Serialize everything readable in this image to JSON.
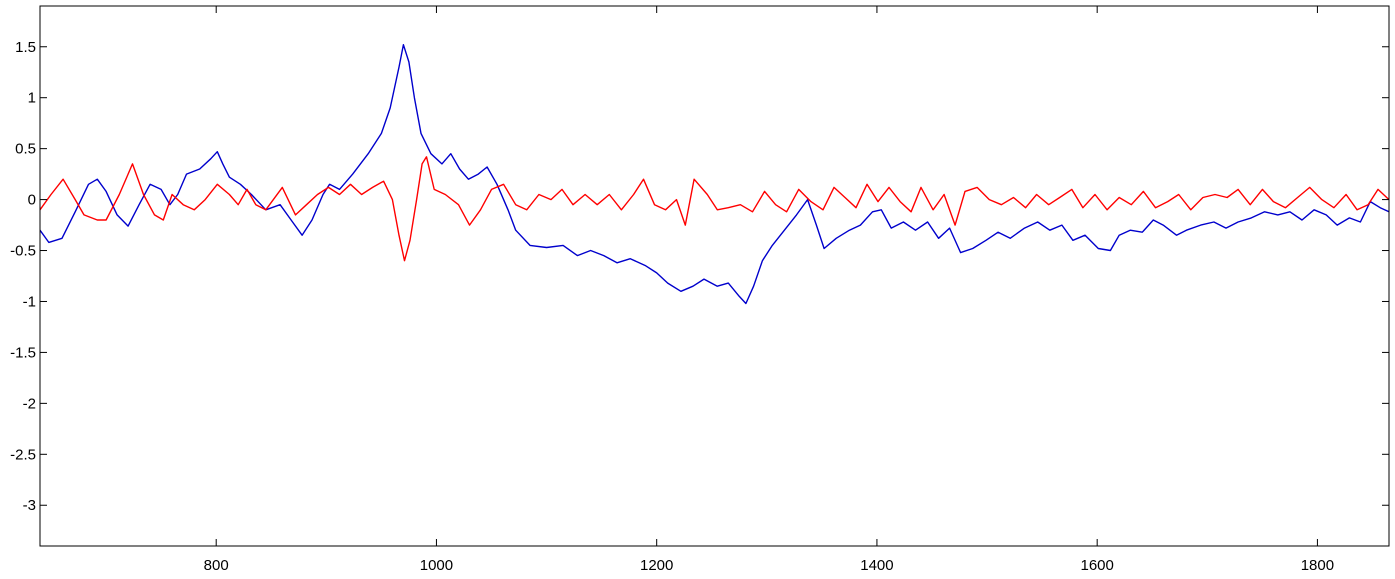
{
  "chart_data": {
    "type": "line",
    "title": "",
    "xlabel": "",
    "ylabel": "",
    "xlim": [
      640,
      1865
    ],
    "ylim": [
      -3.4,
      1.9
    ],
    "grid": false,
    "legend": "none",
    "x_ticks": [
      800,
      1000,
      1200,
      1400,
      1600,
      1800
    ],
    "x_tick_labels": [
      "800",
      "1000",
      "1200",
      "1400",
      "1600",
      "1800"
    ],
    "y_ticks": [
      1.5,
      1,
      0.5,
      0,
      -0.5,
      -1,
      -1.5,
      -2,
      -2.5,
      -3
    ],
    "y_tick_labels": [
      "1.5",
      "1",
      "0.5",
      "0",
      "-0.5",
      "-1",
      "-1.5",
      "-2",
      "-2.5",
      "-3"
    ],
    "series": [
      {
        "color": "#0000cc",
        "points": [
          [
            640,
            -0.3
          ],
          [
            648,
            -0.42
          ],
          [
            660,
            -0.38
          ],
          [
            672,
            -0.12
          ],
          [
            684,
            0.15
          ],
          [
            692,
            0.2
          ],
          [
            700,
            0.08
          ],
          [
            710,
            -0.15
          ],
          [
            720,
            -0.26
          ],
          [
            730,
            -0.05
          ],
          [
            740,
            0.15
          ],
          [
            750,
            0.1
          ],
          [
            758,
            -0.05
          ],
          [
            765,
            0.05
          ],
          [
            773,
            0.25
          ],
          [
            785,
            0.3
          ],
          [
            795,
            0.4
          ],
          [
            801,
            0.47
          ],
          [
            806,
            0.35
          ],
          [
            812,
            0.22
          ],
          [
            822,
            0.15
          ],
          [
            832,
            0.05
          ],
          [
            845,
            -0.1
          ],
          [
            858,
            -0.05
          ],
          [
            868,
            -0.2
          ],
          [
            878,
            -0.35
          ],
          [
            887,
            -0.2
          ],
          [
            897,
            0.05
          ],
          [
            903,
            0.15
          ],
          [
            912,
            0.1
          ],
          [
            924,
            0.25
          ],
          [
            938,
            0.45
          ],
          [
            950,
            0.65
          ],
          [
            958,
            0.9
          ],
          [
            962,
            1.1
          ],
          [
            966,
            1.3
          ],
          [
            970,
            1.52
          ],
          [
            975,
            1.35
          ],
          [
            980,
            1.0
          ],
          [
            986,
            0.65
          ],
          [
            995,
            0.45
          ],
          [
            1005,
            0.35
          ],
          [
            1013,
            0.45
          ],
          [
            1021,
            0.3
          ],
          [
            1029,
            0.2
          ],
          [
            1038,
            0.25
          ],
          [
            1046,
            0.32
          ],
          [
            1055,
            0.15
          ],
          [
            1065,
            -0.1
          ],
          [
            1072,
            -0.3
          ],
          [
            1085,
            -0.45
          ],
          [
            1100,
            -0.47
          ],
          [
            1115,
            -0.45
          ],
          [
            1128,
            -0.55
          ],
          [
            1140,
            -0.5
          ],
          [
            1152,
            -0.55
          ],
          [
            1164,
            -0.62
          ],
          [
            1176,
            -0.58
          ],
          [
            1190,
            -0.65
          ],
          [
            1200,
            -0.72
          ],
          [
            1210,
            -0.82
          ],
          [
            1222,
            -0.9
          ],
          [
            1233,
            -0.85
          ],
          [
            1243,
            -0.78
          ],
          [
            1255,
            -0.85
          ],
          [
            1265,
            -0.82
          ],
          [
            1275,
            -0.95
          ],
          [
            1281,
            -1.02
          ],
          [
            1288,
            -0.85
          ],
          [
            1296,
            -0.6
          ],
          [
            1305,
            -0.45
          ],
          [
            1316,
            -0.3
          ],
          [
            1327,
            -0.15
          ],
          [
            1337,
            0.0
          ],
          [
            1345,
            -0.25
          ],
          [
            1352,
            -0.48
          ],
          [
            1363,
            -0.38
          ],
          [
            1375,
            -0.3
          ],
          [
            1385,
            -0.25
          ],
          [
            1396,
            -0.12
          ],
          [
            1404,
            -0.1
          ],
          [
            1413,
            -0.28
          ],
          [
            1424,
            -0.22
          ],
          [
            1435,
            -0.3
          ],
          [
            1446,
            -0.22
          ],
          [
            1456,
            -0.38
          ],
          [
            1466,
            -0.28
          ],
          [
            1476,
            -0.52
          ],
          [
            1487,
            -0.48
          ],
          [
            1499,
            -0.4
          ],
          [
            1510,
            -0.32
          ],
          [
            1521,
            -0.38
          ],
          [
            1534,
            -0.28
          ],
          [
            1546,
            -0.22
          ],
          [
            1557,
            -0.3
          ],
          [
            1568,
            -0.25
          ],
          [
            1578,
            -0.4
          ],
          [
            1589,
            -0.35
          ],
          [
            1601,
            -0.48
          ],
          [
            1612,
            -0.5
          ],
          [
            1620,
            -0.35
          ],
          [
            1630,
            -0.3
          ],
          [
            1641,
            -0.32
          ],
          [
            1651,
            -0.2
          ],
          [
            1660,
            -0.25
          ],
          [
            1672,
            -0.35
          ],
          [
            1681,
            -0.3
          ],
          [
            1694,
            -0.25
          ],
          [
            1706,
            -0.22
          ],
          [
            1717,
            -0.28
          ],
          [
            1728,
            -0.22
          ],
          [
            1740,
            -0.18
          ],
          [
            1752,
            -0.12
          ],
          [
            1764,
            -0.15
          ],
          [
            1775,
            -0.12
          ],
          [
            1786,
            -0.2
          ],
          [
            1797,
            -0.1
          ],
          [
            1808,
            -0.15
          ],
          [
            1818,
            -0.25
          ],
          [
            1829,
            -0.18
          ],
          [
            1839,
            -0.22
          ],
          [
            1848,
            -0.02
          ],
          [
            1857,
            -0.08
          ],
          [
            1865,
            -0.12
          ]
        ]
      },
      {
        "color": "#ff0000",
        "points": [
          [
            640,
            -0.1
          ],
          [
            650,
            0.05
          ],
          [
            661,
            0.2
          ],
          [
            672,
            0.0
          ],
          [
            680,
            -0.15
          ],
          [
            692,
            -0.2
          ],
          [
            700,
            -0.2
          ],
          [
            712,
            0.05
          ],
          [
            724,
            0.35
          ],
          [
            734,
            0.05
          ],
          [
            744,
            -0.15
          ],
          [
            752,
            -0.2
          ],
          [
            760,
            0.05
          ],
          [
            770,
            -0.05
          ],
          [
            780,
            -0.1
          ],
          [
            790,
            0.0
          ],
          [
            801,
            0.15
          ],
          [
            812,
            0.05
          ],
          [
            820,
            -0.05
          ],
          [
            828,
            0.1
          ],
          [
            836,
            -0.05
          ],
          [
            845,
            -0.1
          ],
          [
            860,
            0.12
          ],
          [
            872,
            -0.15
          ],
          [
            882,
            -0.05
          ],
          [
            892,
            0.05
          ],
          [
            902,
            0.12
          ],
          [
            912,
            0.05
          ],
          [
            922,
            0.15
          ],
          [
            932,
            0.05
          ],
          [
            942,
            0.12
          ],
          [
            952,
            0.18
          ],
          [
            960,
            0.0
          ],
          [
            966,
            -0.35
          ],
          [
            971,
            -0.6
          ],
          [
            976,
            -0.4
          ],
          [
            982,
            0.0
          ],
          [
            987,
            0.35
          ],
          [
            991,
            0.42
          ],
          [
            998,
            0.1
          ],
          [
            1008,
            0.05
          ],
          [
            1020,
            -0.05
          ],
          [
            1030,
            -0.25
          ],
          [
            1040,
            -0.1
          ],
          [
            1050,
            0.1
          ],
          [
            1061,
            0.15
          ],
          [
            1072,
            -0.05
          ],
          [
            1082,
            -0.1
          ],
          [
            1093,
            0.05
          ],
          [
            1104,
            0.0
          ],
          [
            1114,
            0.1
          ],
          [
            1124,
            -0.05
          ],
          [
            1135,
            0.05
          ],
          [
            1146,
            -0.05
          ],
          [
            1157,
            0.05
          ],
          [
            1168,
            -0.1
          ],
          [
            1179,
            0.05
          ],
          [
            1188,
            0.2
          ],
          [
            1198,
            -0.05
          ],
          [
            1208,
            -0.1
          ],
          [
            1218,
            0.0
          ],
          [
            1226,
            -0.25
          ],
          [
            1234,
            0.2
          ],
          [
            1246,
            0.05
          ],
          [
            1255,
            -0.1
          ],
          [
            1265,
            -0.08
          ],
          [
            1276,
            -0.05
          ],
          [
            1287,
            -0.12
          ],
          [
            1298,
            0.08
          ],
          [
            1308,
            -0.05
          ],
          [
            1318,
            -0.12
          ],
          [
            1329,
            0.1
          ],
          [
            1340,
            -0.02
          ],
          [
            1351,
            -0.1
          ],
          [
            1361,
            0.12
          ],
          [
            1371,
            0.02
          ],
          [
            1381,
            -0.08
          ],
          [
            1391,
            0.15
          ],
          [
            1401,
            -0.02
          ],
          [
            1411,
            0.12
          ],
          [
            1421,
            -0.02
          ],
          [
            1431,
            -0.12
          ],
          [
            1440,
            0.12
          ],
          [
            1451,
            -0.1
          ],
          [
            1461,
            0.05
          ],
          [
            1471,
            -0.25
          ],
          [
            1480,
            0.08
          ],
          [
            1491,
            0.12
          ],
          [
            1502,
            0.0
          ],
          [
            1513,
            -0.05
          ],
          [
            1524,
            0.02
          ],
          [
            1535,
            -0.08
          ],
          [
            1545,
            0.05
          ],
          [
            1556,
            -0.05
          ],
          [
            1566,
            0.02
          ],
          [
            1577,
            0.1
          ],
          [
            1587,
            -0.08
          ],
          [
            1598,
            0.05
          ],
          [
            1609,
            -0.1
          ],
          [
            1620,
            0.02
          ],
          [
            1631,
            -0.05
          ],
          [
            1642,
            0.08
          ],
          [
            1653,
            -0.08
          ],
          [
            1664,
            -0.02
          ],
          [
            1674,
            0.05
          ],
          [
            1685,
            -0.1
          ],
          [
            1696,
            0.02
          ],
          [
            1707,
            0.05
          ],
          [
            1718,
            0.02
          ],
          [
            1728,
            0.1
          ],
          [
            1739,
            -0.05
          ],
          [
            1750,
            0.1
          ],
          [
            1760,
            -0.02
          ],
          [
            1771,
            -0.08
          ],
          [
            1782,
            0.02
          ],
          [
            1793,
            0.12
          ],
          [
            1804,
            0.0
          ],
          [
            1815,
            -0.08
          ],
          [
            1826,
            0.05
          ],
          [
            1836,
            -0.1
          ],
          [
            1846,
            -0.05
          ],
          [
            1855,
            0.1
          ],
          [
            1865,
            0.0
          ]
        ]
      }
    ]
  }
}
